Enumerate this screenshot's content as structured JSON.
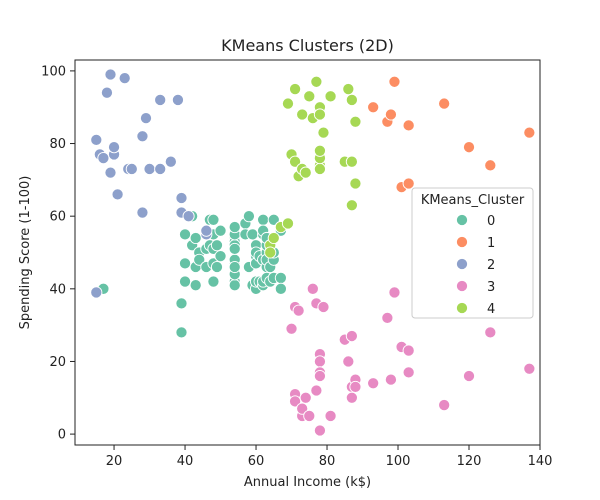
{
  "chart_data": {
    "type": "scatter",
    "title": "KMeans Clusters (2D)",
    "xlabel": "Annual Income (k$)",
    "ylabel": "Spending Score (1-100)",
    "xlim": [
      9,
      140
    ],
    "ylim": [
      -3,
      103
    ],
    "xticks": [
      20,
      40,
      60,
      80,
      100,
      120,
      140
    ],
    "yticks": [
      0,
      20,
      40,
      60,
      80,
      100
    ],
    "grid": false,
    "legend": {
      "title": "KMeans_Cluster",
      "position": "right"
    },
    "series": [
      {
        "name": "0",
        "color": "#66c2a5",
        "points": [
          [
            17,
            40
          ],
          [
            39,
            36
          ],
          [
            39,
            28
          ],
          [
            40,
            55
          ],
          [
            40,
            47
          ],
          [
            40,
            42
          ],
          [
            42,
            52
          ],
          [
            42,
            60
          ],
          [
            43,
            54
          ],
          [
            43,
            41
          ],
          [
            43,
            46
          ],
          [
            44,
            50
          ],
          [
            44,
            48
          ],
          [
            46,
            51
          ],
          [
            46,
            46
          ],
          [
            46,
            56
          ],
          [
            47,
            52
          ],
          [
            47,
            59
          ],
          [
            48,
            47
          ],
          [
            48,
            51
          ],
          [
            48,
            55
          ],
          [
            48,
            59
          ],
          [
            48,
            42
          ],
          [
            49,
            52
          ],
          [
            49,
            46
          ],
          [
            50,
            56
          ],
          [
            50,
            49
          ],
          [
            54,
            47
          ],
          [
            54,
            54
          ],
          [
            54,
            53
          ],
          [
            54,
            48
          ],
          [
            54,
            52
          ],
          [
            54,
            42
          ],
          [
            54,
            51
          ],
          [
            54,
            55
          ],
          [
            54,
            41
          ],
          [
            54,
            44
          ],
          [
            54,
            57
          ],
          [
            54,
            46
          ],
          [
            57,
            58
          ],
          [
            57,
            55
          ],
          [
            58,
            60
          ],
          [
            58,
            46
          ],
          [
            59,
            55
          ],
          [
            59,
            41
          ],
          [
            60,
            49
          ],
          [
            60,
            40
          ],
          [
            60,
            42
          ],
          [
            60,
            52
          ],
          [
            60,
            47
          ],
          [
            60,
            50
          ],
          [
            61,
            42
          ],
          [
            61,
            49
          ],
          [
            62,
            41
          ],
          [
            62,
            48
          ],
          [
            62,
            59
          ],
          [
            62,
            55
          ],
          [
            62,
            56
          ],
          [
            62,
            42
          ],
          [
            63,
            50
          ],
          [
            63,
            46
          ],
          [
            63,
            43
          ],
          [
            63,
            48
          ],
          [
            63,
            52
          ],
          [
            63,
            54
          ],
          [
            64,
            42
          ],
          [
            64,
            46
          ],
          [
            65,
            48
          ],
          [
            65,
            50
          ],
          [
            65,
            43
          ],
          [
            65,
            59
          ],
          [
            67,
            43
          ],
          [
            67,
            57
          ],
          [
            67,
            56
          ],
          [
            67,
            40
          ]
        ]
      },
      {
        "name": "1",
        "color": "#fc8d62",
        "points": [
          [
            93,
            90
          ],
          [
            97,
            86
          ],
          [
            98,
            88
          ],
          [
            99,
            97
          ],
          [
            101,
            68
          ],
          [
            103,
            85
          ],
          [
            103,
            69
          ],
          [
            113,
            91
          ],
          [
            120,
            79
          ],
          [
            126,
            74
          ],
          [
            137,
            83
          ]
        ]
      },
      {
        "name": "2",
        "color": "#8da0cb",
        "points": [
          [
            15,
            39
          ],
          [
            15,
            81
          ],
          [
            16,
            77
          ],
          [
            17,
            76
          ],
          [
            18,
            94
          ],
          [
            19,
            72
          ],
          [
            19,
            99
          ],
          [
            20,
            77
          ],
          [
            20,
            79
          ],
          [
            21,
            66
          ],
          [
            23,
            98
          ],
          [
            24,
            73
          ],
          [
            25,
            73
          ],
          [
            28,
            82
          ],
          [
            28,
            61
          ],
          [
            29,
            87
          ],
          [
            30,
            73
          ],
          [
            33,
            73
          ],
          [
            33,
            92
          ],
          [
            36,
            75
          ],
          [
            38,
            92
          ],
          [
            39,
            61
          ],
          [
            39,
            65
          ],
          [
            41,
            60
          ],
          [
            46,
            55
          ],
          [
            46,
            56
          ]
        ]
      },
      {
        "name": "3",
        "color": "#e78ac3",
        "points": [
          [
            70,
            29
          ],
          [
            71,
            35
          ],
          [
            71,
            11
          ],
          [
            71,
            9
          ],
          [
            72,
            34
          ],
          [
            73,
            5
          ],
          [
            73,
            7
          ],
          [
            74,
            10
          ],
          [
            75,
            5
          ],
          [
            76,
            40
          ],
          [
            77,
            12
          ],
          [
            77,
            36
          ],
          [
            78,
            22
          ],
          [
            78,
            1
          ],
          [
            78,
            20
          ],
          [
            78,
            17
          ],
          [
            78,
            16
          ],
          [
            79,
            35
          ],
          [
            81,
            5
          ],
          [
            85,
            26
          ],
          [
            86,
            20
          ],
          [
            87,
            27
          ],
          [
            87,
            13
          ],
          [
            87,
            10
          ],
          [
            88,
            15
          ],
          [
            88,
            13
          ],
          [
            93,
            14
          ],
          [
            97,
            32
          ],
          [
            98,
            15
          ],
          [
            99,
            39
          ],
          [
            101,
            24
          ],
          [
            103,
            17
          ],
          [
            103,
            23
          ],
          [
            113,
            8
          ],
          [
            120,
            16
          ],
          [
            126,
            28
          ],
          [
            137,
            18
          ]
        ]
      },
      {
        "name": "4",
        "color": "#a6d854",
        "points": [
          [
            64,
            52
          ],
          [
            64,
            50
          ],
          [
            65,
            54
          ],
          [
            67,
            57
          ],
          [
            69,
            58
          ],
          [
            69,
            91
          ],
          [
            70,
            77
          ],
          [
            71,
            95
          ],
          [
            71,
            75
          ],
          [
            72,
            71
          ],
          [
            73,
            88
          ],
          [
            73,
            73
          ],
          [
            74,
            72
          ],
          [
            75,
            93
          ],
          [
            76,
            87
          ],
          [
            77,
            97
          ],
          [
            78,
            74
          ],
          [
            78,
            73
          ],
          [
            78,
            76
          ],
          [
            78,
            78
          ],
          [
            78,
            89
          ],
          [
            78,
            90
          ],
          [
            78,
            88
          ],
          [
            79,
            83
          ],
          [
            81,
            93
          ],
          [
            85,
            75
          ],
          [
            86,
            95
          ],
          [
            87,
            75
          ],
          [
            87,
            92
          ],
          [
            87,
            63
          ],
          [
            88,
            86
          ],
          [
            88,
            69
          ]
        ]
      }
    ]
  }
}
